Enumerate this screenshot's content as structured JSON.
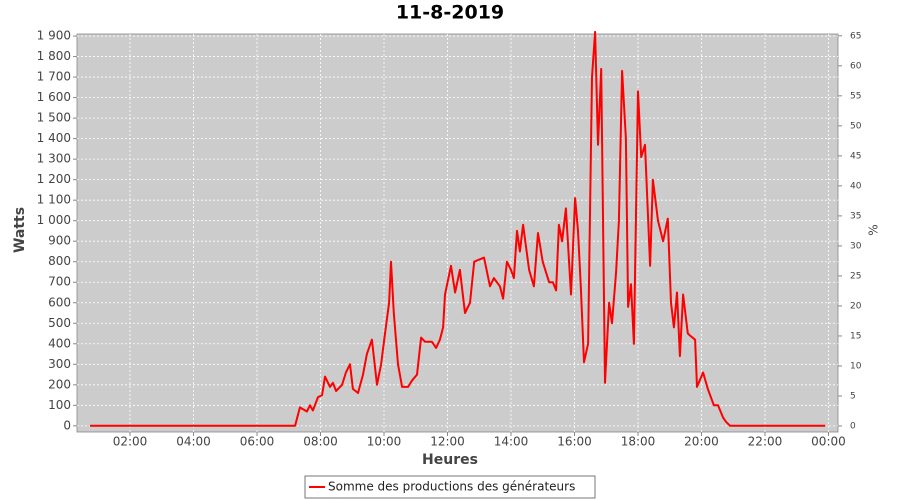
{
  "chart_data": {
    "type": "line",
    "title": "11-8-2019",
    "x_label": "Heures",
    "y_label": "Watts",
    "y2_label": "%",
    "x": [
      0.74,
      7.0,
      7.2,
      7.35,
      7.57,
      7.67,
      7.76,
      7.92,
      8.05,
      8.14,
      8.3,
      8.39,
      8.49,
      8.68,
      8.8,
      8.93,
      9.02,
      9.18,
      9.34,
      9.46,
      9.62,
      9.78,
      9.91,
      10.03,
      10.16,
      10.22,
      10.31,
      10.44,
      10.57,
      10.76,
      10.88,
      11.04,
      11.17,
      11.29,
      11.51,
      11.64,
      11.76,
      11.86,
      11.92,
      12.11,
      12.24,
      12.39,
      12.55,
      12.71,
      12.84,
      13.15,
      13.34,
      13.46,
      13.65,
      13.75,
      13.87,
      14.0,
      14.09,
      14.19,
      14.28,
      14.38,
      14.57,
      14.72,
      14.85,
      15.0,
      15.2,
      15.32,
      15.42,
      15.51,
      15.61,
      15.73,
      15.89,
      16.02,
      16.11,
      16.2,
      16.3,
      16.43,
      16.55,
      16.65,
      16.74,
      16.84,
      16.96,
      17.09,
      17.18,
      17.31,
      17.4,
      17.5,
      17.62,
      17.69,
      17.78,
      17.87,
      18.0,
      18.1,
      18.22,
      18.38,
      18.47,
      18.63,
      18.79,
      18.94,
      19.04,
      19.13,
      19.23,
      19.32,
      19.42,
      19.57,
      19.64,
      19.8,
      19.86,
      20.05,
      20.2,
      20.39,
      20.52,
      20.68,
      20.77,
      20.9,
      23.9
    ],
    "series": [
      {
        "name": "Somme des productions des  générateurs",
        "color": "#ff0000",
        "values": [
          0,
          0,
          0,
          90,
          70,
          100,
          75,
          140,
          150,
          240,
          190,
          210,
          170,
          200,
          260,
          300,
          180,
          160,
          250,
          350,
          420,
          200,
          300,
          450,
          600,
          800,
          550,
          300,
          190,
          190,
          220,
          250,
          430,
          410,
          410,
          380,
          420,
          480,
          640,
          780,
          650,
          760,
          550,
          600,
          800,
          820,
          680,
          720,
          680,
          620,
          800,
          760,
          720,
          950,
          850,
          980,
          760,
          680,
          940,
          800,
          700,
          700,
          660,
          980,
          900,
          1060,
          640,
          1110,
          950,
          680,
          310,
          400,
          1700,
          1920,
          1370,
          1740,
          210,
          600,
          500,
          750,
          1000,
          1730,
          1400,
          580,
          690,
          400,
          1630,
          1310,
          1370,
          780,
          1200,
          1000,
          900,
          1010,
          600,
          480,
          650,
          340,
          640,
          450,
          440,
          420,
          190,
          260,
          180,
          100,
          100,
          40,
          20,
          0,
          0
        ]
      }
    ],
    "xlim": [
      0.33,
      24.3
    ],
    "xticks": [
      {
        "value": 2,
        "label": "02:00"
      },
      {
        "value": 4,
        "label": "04:00"
      },
      {
        "value": 6,
        "label": "06:00"
      },
      {
        "value": 8,
        "label": "08:00"
      },
      {
        "value": 10,
        "label": "10:00"
      },
      {
        "value": 12,
        "label": "12:00"
      },
      {
        "value": 14,
        "label": "14:00"
      },
      {
        "value": 16,
        "label": "16:00"
      },
      {
        "value": 18,
        "label": "18:00"
      },
      {
        "value": 20,
        "label": "20:00"
      },
      {
        "value": 22,
        "label": "22:00"
      },
      {
        "value": 24,
        "label": "00:00"
      }
    ],
    "ylim": [
      -30,
      1910
    ],
    "yticks": [
      0,
      100,
      200,
      300,
      400,
      500,
      600,
      700,
      800,
      900,
      {
        "value": 1000,
        "label": "1 000"
      },
      {
        "value": 1100,
        "label": "1 100"
      },
      {
        "value": 1200,
        "label": "1 200"
      },
      {
        "value": 1300,
        "label": "1 300"
      },
      {
        "value": 1400,
        "label": "1 400"
      },
      {
        "value": 1500,
        "label": "1 500"
      },
      {
        "value": 1600,
        "label": "1 600"
      },
      {
        "value": 1700,
        "label": "1 700"
      },
      {
        "value": 1800,
        "label": "1 800"
      },
      {
        "value": 1900,
        "label": "1 900"
      }
    ],
    "y2lim": [
      -1,
      65.3
    ],
    "y2ticks": [
      0,
      5,
      10,
      15,
      20,
      25,
      30,
      35,
      40,
      45,
      50,
      55,
      60,
      65
    ],
    "grid": true
  }
}
